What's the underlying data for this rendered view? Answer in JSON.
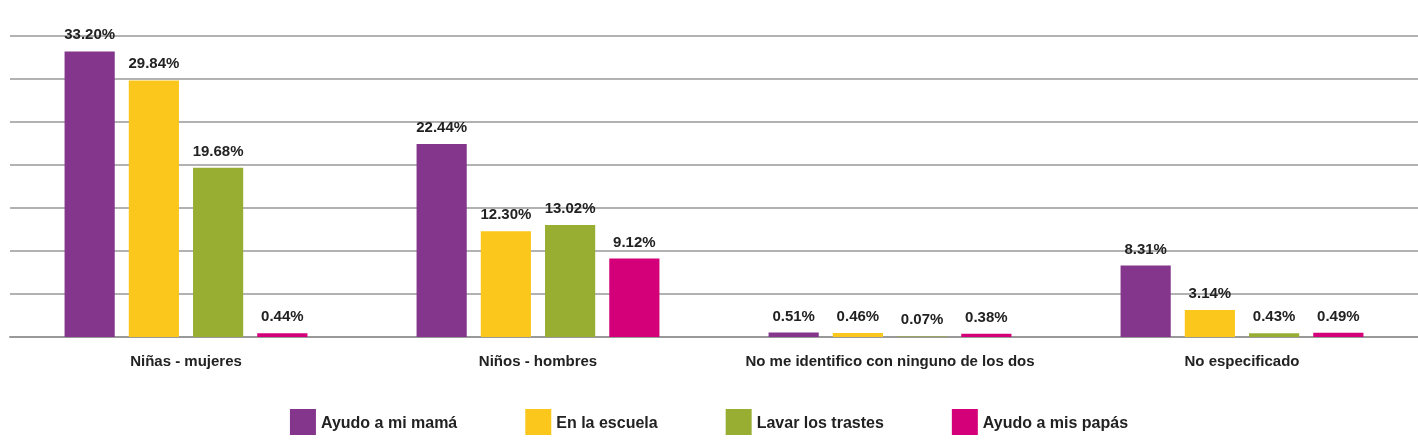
{
  "chart_data": {
    "type": "bar",
    "categories": [
      "Niñas - mujeres",
      "Niños - hombres",
      "No me identifico con ninguno de los dos",
      "No especificado"
    ],
    "series": [
      {
        "name": "Ayudo a mi mamá",
        "color": "#84358c",
        "values": [
          33.2,
          22.44,
          0.51,
          8.31
        ],
        "value_labels": [
          "33.20%",
          "22.44%",
          "0.51%",
          "8.31%"
        ]
      },
      {
        "name": "En la escuela",
        "color": "#fcc71d",
        "values": [
          29.84,
          12.3,
          0.46,
          3.14
        ],
        "value_labels": [
          "29.84%",
          "12.30%",
          "0.46%",
          "3.14%"
        ]
      },
      {
        "name": "Lavar los trastes",
        "color": "#98ae33",
        "values": [
          19.68,
          13.02,
          0.07,
          0.43
        ],
        "value_labels": [
          "19.68%",
          "13.02%",
          "0.07%",
          "0.43%"
        ]
      },
      {
        "name": "Ayudo a mis papás",
        "color": "#d4007a",
        "values": [
          0.44,
          9.12,
          0.38,
          0.49
        ],
        "value_labels": [
          "0.44%",
          "9.12%",
          "0.38%",
          "0.49%"
        ]
      }
    ],
    "ylim": [
      0,
      35
    ],
    "yticks": [
      {
        "value": 0,
        "label": null
      },
      {
        "value": 5,
        "label": null
      },
      {
        "value": 10,
        "label": null
      },
      {
        "value": 15,
        "label": null
      },
      {
        "value": 20,
        "label": null
      },
      {
        "value": 25,
        "label": null
      },
      {
        "value": 30,
        "label": null
      },
      {
        "value": 35,
        "label": null
      }
    ],
    "tick_labels": "x",
    "grid": "y",
    "legend": "bottom"
  }
}
